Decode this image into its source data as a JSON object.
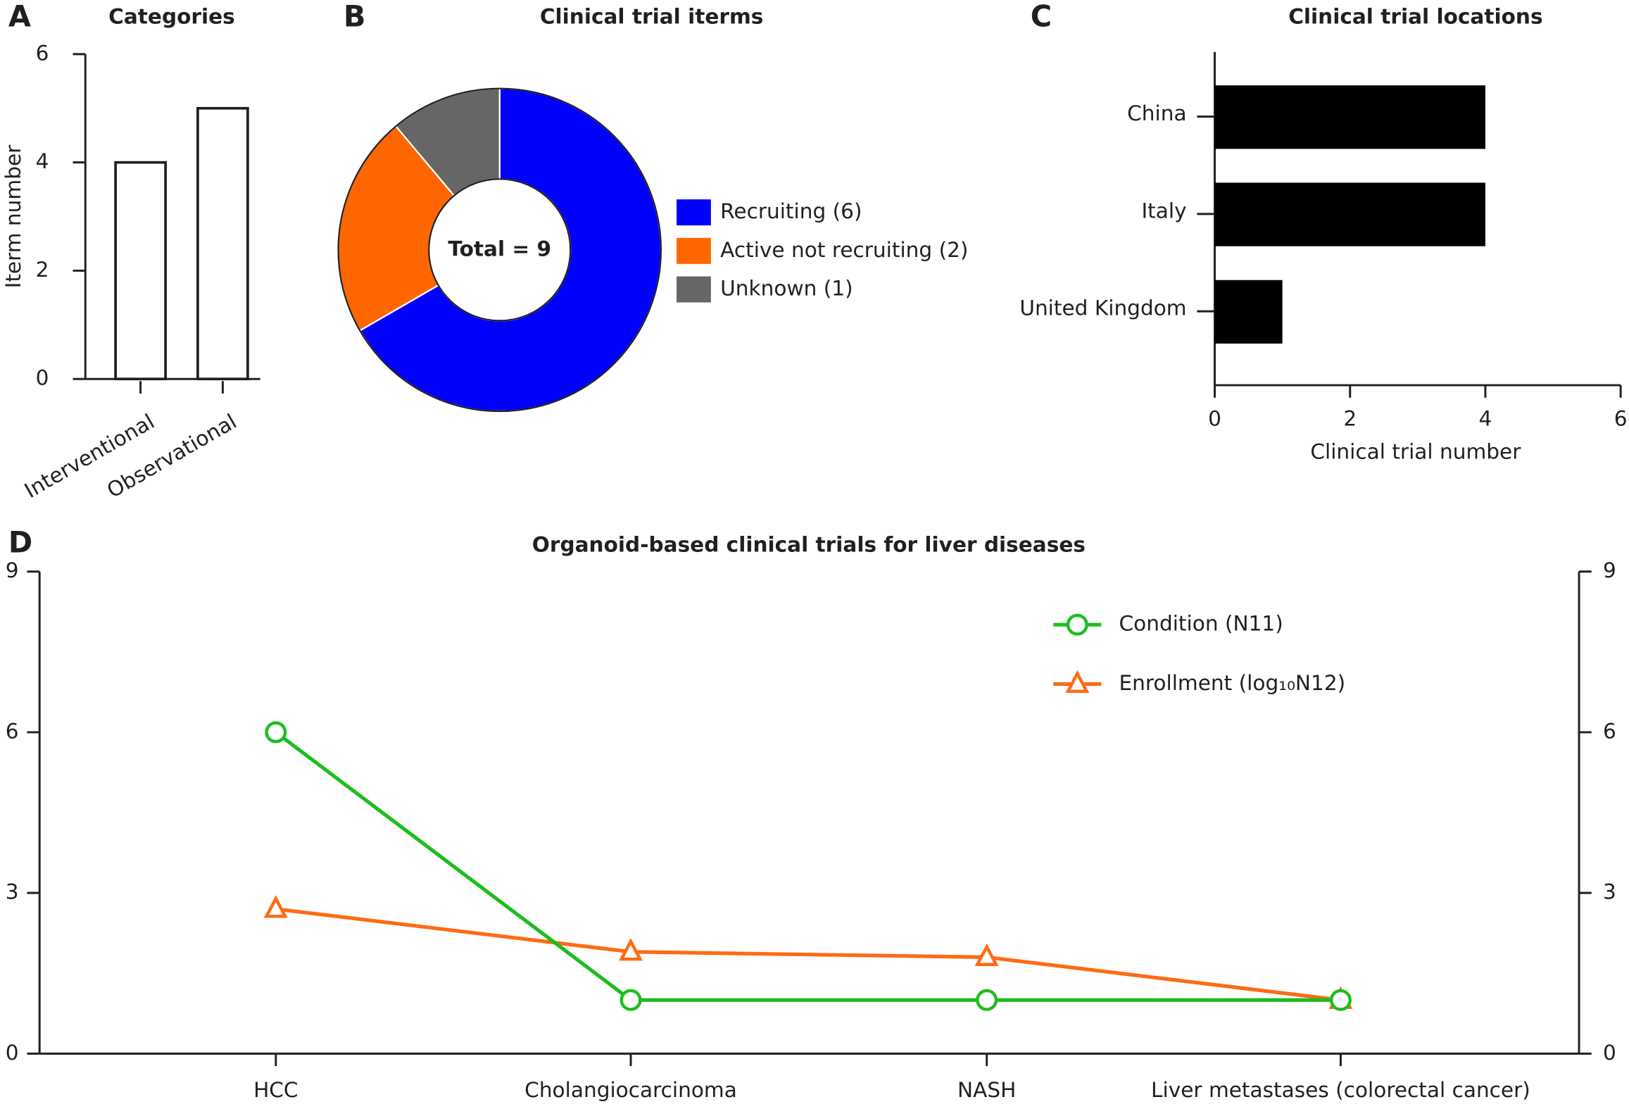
{
  "chart_data": [
    {
      "type": "bar",
      "panel": "A",
      "title": "Categories",
      "ylabel": "Iterm number",
      "categories": [
        "Interventional",
        "Observational"
      ],
      "values": [
        4,
        5
      ],
      "color": "#ffffff",
      "ylim": [
        0,
        6
      ],
      "yticks": [
        0,
        2,
        4,
        6
      ]
    },
    {
      "type": "pie",
      "panel": "B",
      "title": "Clinical trial iterms",
      "center_label": "Total = 9",
      "categories": [
        "Recruiting (6)",
        "Active not recruiting (2)",
        "Unknown (1)"
      ],
      "values": [
        6,
        2,
        1
      ],
      "colors": [
        "#0000ff",
        "#ff6600",
        "#666666"
      ]
    },
    {
      "type": "barh",
      "panel": "C",
      "title": "Clinical trial locations",
      "xlabel": "Clinical trial number",
      "categories": [
        "China",
        "Italy",
        "United Kingdom"
      ],
      "values": [
        4,
        4,
        1
      ],
      "color": "#000000",
      "xlim": [
        0,
        6
      ],
      "xticks": [
        0,
        2,
        4,
        6
      ]
    },
    {
      "type": "line",
      "panel": "D",
      "title": "Organoid-based clinical trials for liver diseases",
      "categories": [
        "HCC",
        "Cholangiocarcinoma",
        "NASH",
        "Liver metastases (colorectal cancer)"
      ],
      "series": [
        {
          "name": "Condition (N11)",
          "color": "#1ebd1e",
          "marker": "circle",
          "values": [
            6,
            1,
            1,
            1
          ]
        },
        {
          "name": "Enrollment (log₁₀N12)",
          "color": "#ff6a13",
          "marker": "triangle",
          "values": [
            2.7,
            1.9,
            1.8,
            1
          ]
        }
      ],
      "ylim": [
        0,
        9
      ],
      "yticks": [
        0,
        3,
        6,
        9
      ],
      "y2lim": [
        0,
        9
      ],
      "y2ticks": [
        0,
        3,
        6,
        9
      ]
    }
  ]
}
